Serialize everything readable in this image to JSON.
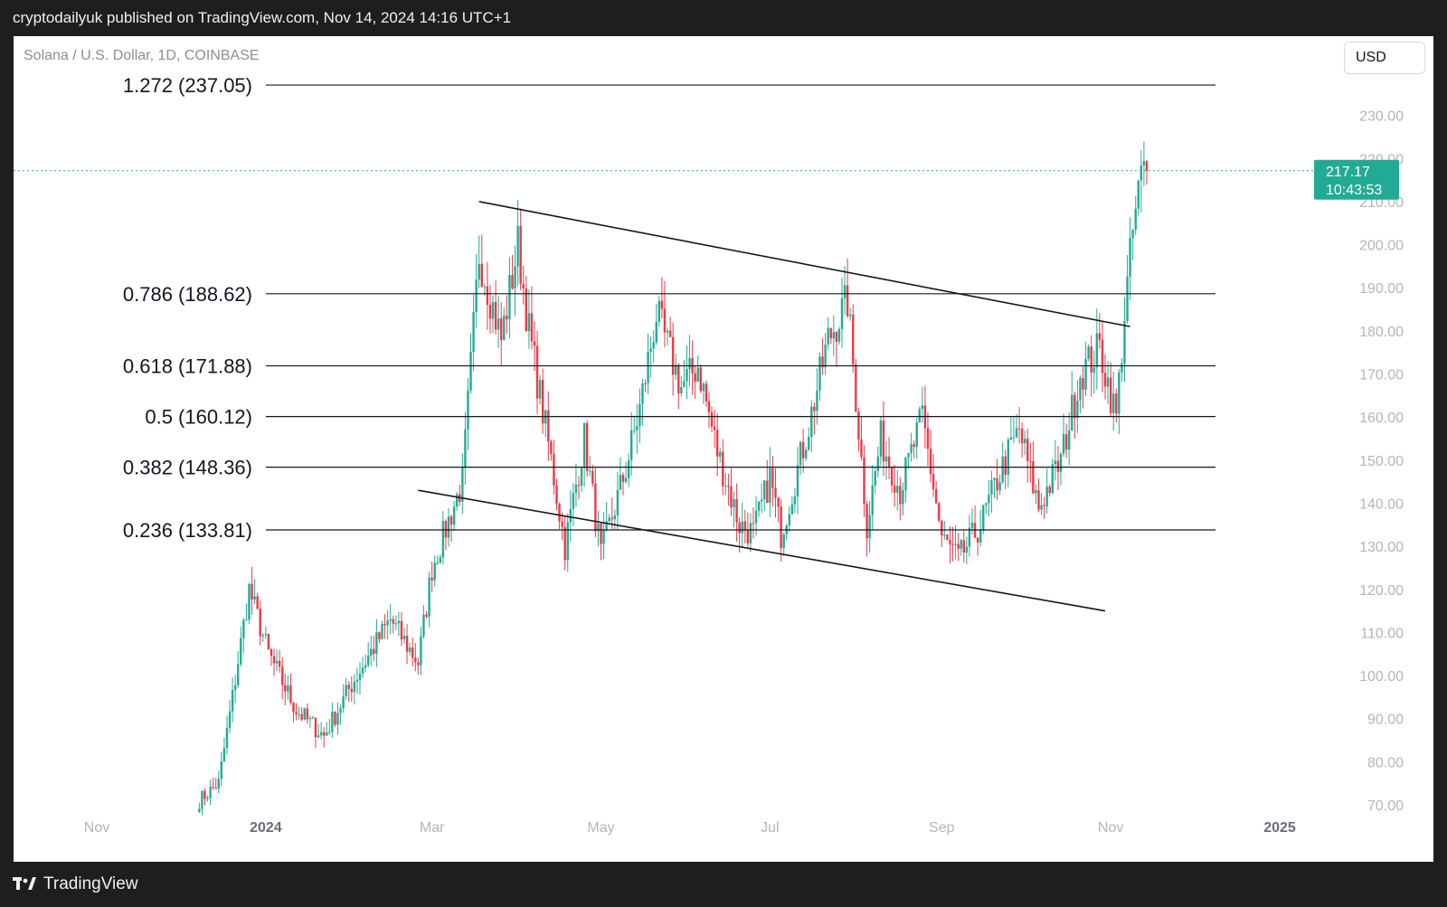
{
  "header": {
    "publisher_line": "cryptodailyuk published on TradingView.com, Nov 14, 2024 14:16 UTC+1"
  },
  "chart": {
    "symbol_line": "Solana / U.S. Dollar, 1D, COINBASE",
    "currency": "USD",
    "price_badge": {
      "price": "217.17",
      "countdown": "10:43:53",
      "color": "#22ab94"
    }
  },
  "footer": {
    "brand": "TradingView"
  },
  "colors": {
    "up": "#22ab94",
    "down": "#f23645",
    "line": "#131722",
    "axis_text": "#b2b5be"
  },
  "chart_data": {
    "type": "candlestick",
    "price_axis": {
      "ylim": [
        70,
        240
      ],
      "ticks": [
        "70.00",
        "80.00",
        "90.00",
        "100.00",
        "110.00",
        "120.00",
        "130.00",
        "140.00",
        "150.00",
        "160.00",
        "170.00",
        "180.00",
        "190.00",
        "200.00",
        "210.00",
        "220.00",
        "230.00"
      ]
    },
    "time_axis": {
      "labels": [
        {
          "label": "Nov",
          "date": "2023-11-01",
          "bold": false
        },
        {
          "label": "2024",
          "date": "2024-01-01",
          "bold": true
        },
        {
          "label": "Mar",
          "date": "2024-03-01",
          "bold": false
        },
        {
          "label": "May",
          "date": "2024-05-01",
          "bold": false
        },
        {
          "label": "Jul",
          "date": "2024-07-01",
          "bold": false
        },
        {
          "label": "Sep",
          "date": "2024-09-01",
          "bold": false
        },
        {
          "label": "Nov",
          "date": "2024-11-01",
          "bold": false
        },
        {
          "label": "2025",
          "date": "2025-01-01",
          "bold": true
        }
      ]
    },
    "fib_levels": [
      {
        "ratio": "1.272",
        "price": 237.05,
        "label": "1.272 (237.05)"
      },
      {
        "ratio": "0.786",
        "price": 188.62,
        "label": "0.786 (188.62)"
      },
      {
        "ratio": "0.618",
        "price": 171.88,
        "label": "0.618 (171.88)"
      },
      {
        "ratio": "0.5",
        "price": 160.12,
        "label": "0.5 (160.12)"
      },
      {
        "ratio": "0.382",
        "price": 148.36,
        "label": "0.382 (148.36)"
      },
      {
        "ratio": "0.236",
        "price": 133.81,
        "label": "0.236 (133.81)"
      }
    ],
    "trendlines": [
      {
        "name": "upper",
        "from": {
          "date": "2024-03-18",
          "price": 210
        },
        "to": {
          "date": "2024-11-08",
          "price": 181
        }
      },
      {
        "name": "lower",
        "from": {
          "date": "2024-02-25",
          "price": 143
        },
        "to": {
          "date": "2024-10-30",
          "price": 115
        }
      }
    ],
    "last_price": 217.17,
    "anchors": [
      {
        "date": "2023-12-08",
        "price": 71
      },
      {
        "date": "2023-12-15",
        "price": 75
      },
      {
        "date": "2023-12-20",
        "price": 95
      },
      {
        "date": "2023-12-26",
        "price": 120
      },
      {
        "date": "2024-01-02",
        "price": 105
      },
      {
        "date": "2024-01-12",
        "price": 92
      },
      {
        "date": "2024-01-22",
        "price": 86
      },
      {
        "date": "2024-02-01",
        "price": 98
      },
      {
        "date": "2024-02-15",
        "price": 113
      },
      {
        "date": "2024-02-25",
        "price": 103
      },
      {
        "date": "2024-03-01",
        "price": 125
      },
      {
        "date": "2024-03-12",
        "price": 145
      },
      {
        "date": "2024-03-18",
        "price": 198
      },
      {
        "date": "2024-03-26",
        "price": 178
      },
      {
        "date": "2024-04-01",
        "price": 200
      },
      {
        "date": "2024-04-05",
        "price": 180
      },
      {
        "date": "2024-04-13",
        "price": 150
      },
      {
        "date": "2024-04-18",
        "price": 130
      },
      {
        "date": "2024-04-25",
        "price": 155
      },
      {
        "date": "2024-05-01",
        "price": 128
      },
      {
        "date": "2024-05-10",
        "price": 148
      },
      {
        "date": "2024-05-15",
        "price": 162
      },
      {
        "date": "2024-05-21",
        "price": 184
      },
      {
        "date": "2024-05-30",
        "price": 167
      },
      {
        "date": "2024-06-05",
        "price": 172
      },
      {
        "date": "2024-06-12",
        "price": 152
      },
      {
        "date": "2024-06-20",
        "price": 135
      },
      {
        "date": "2024-06-25",
        "price": 133
      },
      {
        "date": "2024-07-01",
        "price": 146
      },
      {
        "date": "2024-07-05",
        "price": 133
      },
      {
        "date": "2024-07-15",
        "price": 158
      },
      {
        "date": "2024-07-22",
        "price": 178
      },
      {
        "date": "2024-07-29",
        "price": 187
      },
      {
        "date": "2024-08-05",
        "price": 135
      },
      {
        "date": "2024-08-10",
        "price": 155
      },
      {
        "date": "2024-08-17",
        "price": 143
      },
      {
        "date": "2024-08-25",
        "price": 160
      },
      {
        "date": "2024-09-01",
        "price": 132
      },
      {
        "date": "2024-09-07",
        "price": 127
      },
      {
        "date": "2024-09-15",
        "price": 135
      },
      {
        "date": "2024-09-22",
        "price": 147
      },
      {
        "date": "2024-09-29",
        "price": 157
      },
      {
        "date": "2024-10-06",
        "price": 139
      },
      {
        "date": "2024-10-14",
        "price": 150
      },
      {
        "date": "2024-10-21",
        "price": 170
      },
      {
        "date": "2024-10-28",
        "price": 176
      },
      {
        "date": "2024-11-03",
        "price": 160
      },
      {
        "date": "2024-11-06",
        "price": 184
      },
      {
        "date": "2024-11-09",
        "price": 203
      },
      {
        "date": "2024-11-12",
        "price": 216
      },
      {
        "date": "2024-11-14",
        "price": 217.17
      }
    ]
  }
}
